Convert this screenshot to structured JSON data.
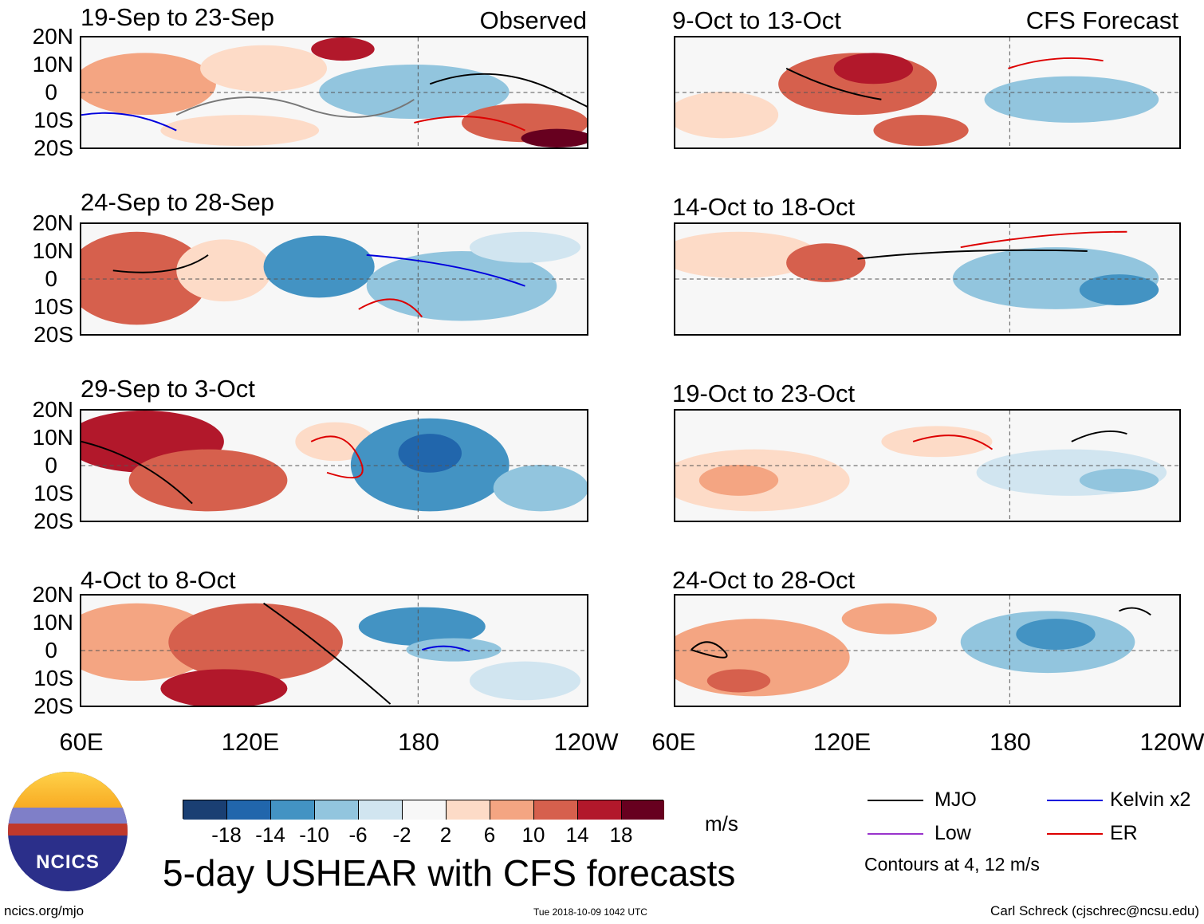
{
  "left_header": "Observed",
  "right_header": "CFS Forecast",
  "left_panels": [
    {
      "title": "19-Sep to 23-Sep"
    },
    {
      "title": "24-Sep to 28-Sep"
    },
    {
      "title": "29-Sep to 3-Oct"
    },
    {
      "title": "4-Oct to 8-Oct"
    }
  ],
  "right_panels": [
    {
      "title": "9-Oct to 13-Oct"
    },
    {
      "title": "14-Oct to 18-Oct"
    },
    {
      "title": "19-Oct to 23-Oct"
    },
    {
      "title": "24-Oct to 28-Oct"
    }
  ],
  "lat_labels": [
    "20N",
    "10N",
    "0",
    "10S",
    "20S"
  ],
  "lon_labels": [
    "60E",
    "120E",
    "180",
    "120W"
  ],
  "colorbar": {
    "colors": [
      "#1a3f73",
      "#2166ac",
      "#4393c3",
      "#92c5de",
      "#d1e5f0",
      "#f7f7f7",
      "#fddbc7",
      "#f4a582",
      "#d6604d",
      "#b2182b",
      "#67001f"
    ],
    "labels": [
      "-18",
      "-14",
      "-10",
      "-6",
      "-2",
      "2",
      "6",
      "10",
      "14",
      "18"
    ],
    "unit": "m/s"
  },
  "legend": {
    "items": [
      {
        "label": "MJO",
        "color": "#000000"
      },
      {
        "label": "Kelvin x2",
        "color": "#0000dd"
      },
      {
        "label": "Low",
        "color": "#9933cc"
      },
      {
        "label": "ER",
        "color": "#dd0000"
      }
    ],
    "note": "Contours at 4, 12 m/s"
  },
  "logo_text": "NCICS",
  "main_title": "5-day USHEAR with CFS forecasts",
  "footer_left": "ncics.org/mjo",
  "footer_center": "Tue 2018-10-09 1042 UTC",
  "footer_right": "Carl Schreck (cjschrec@ncsu.edu)"
}
